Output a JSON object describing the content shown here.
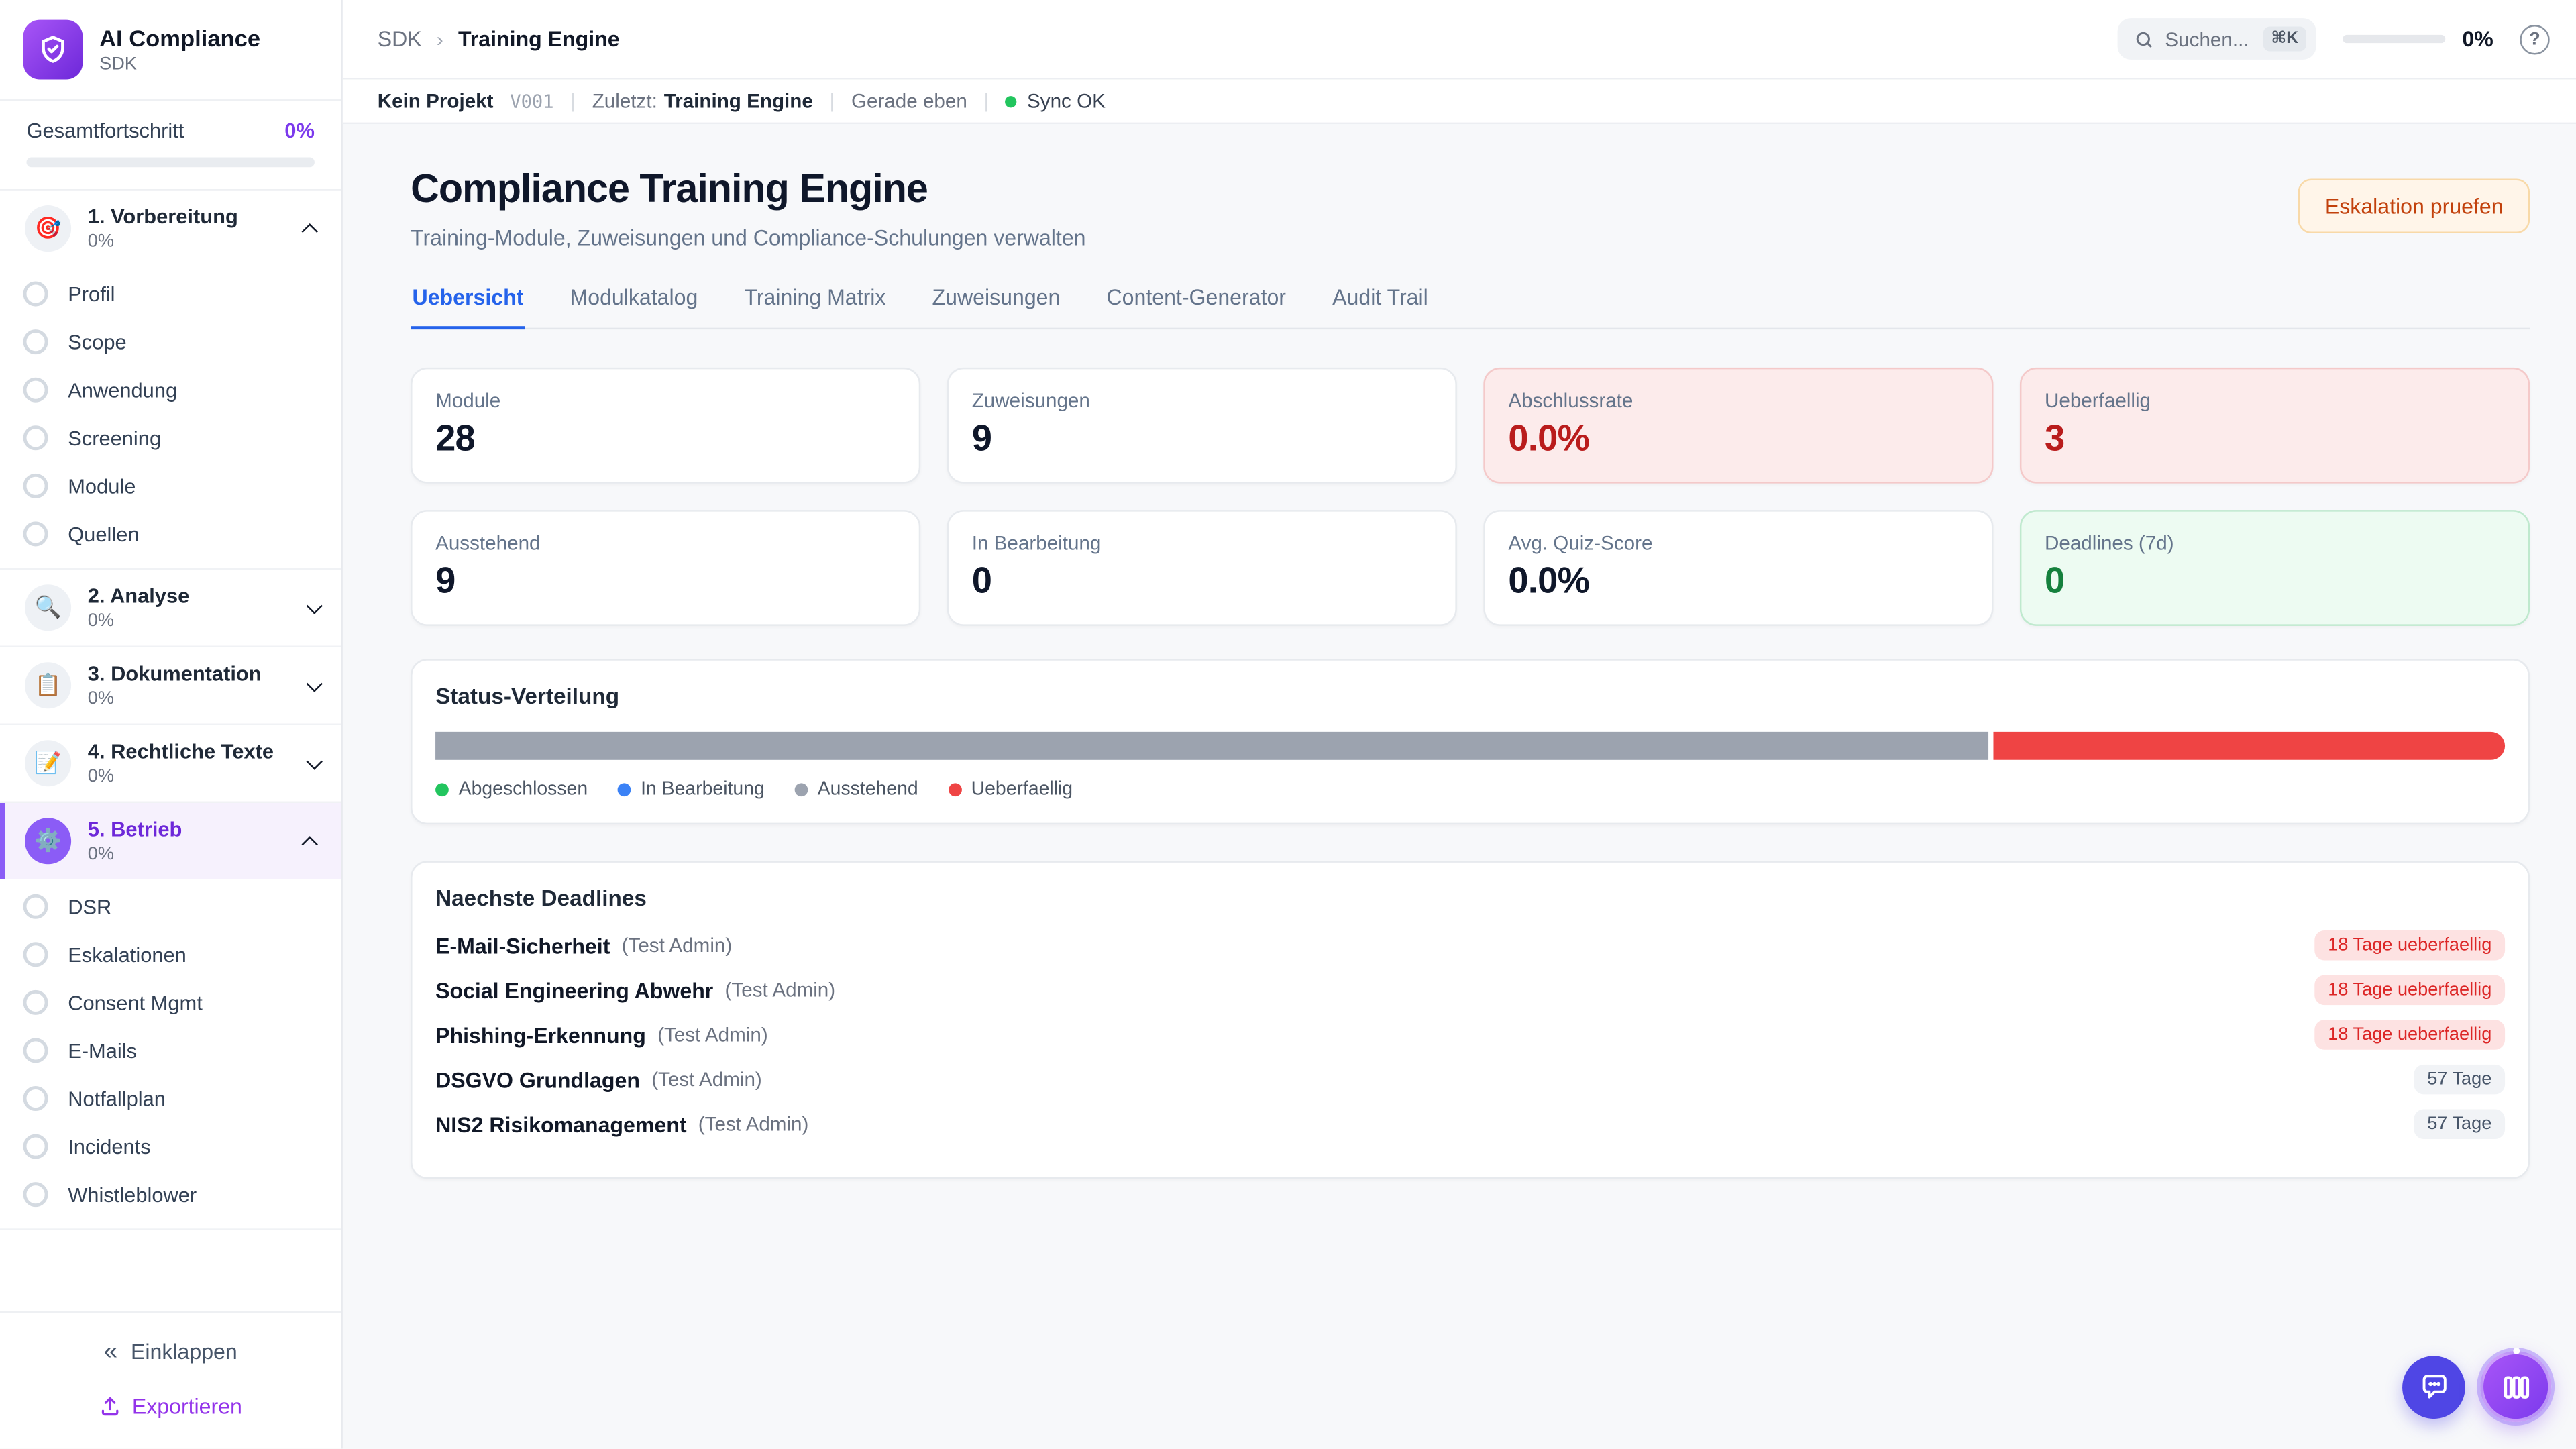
{
  "app": {
    "name": "AI Compliance",
    "subtitle": "SDK"
  },
  "sidebar": {
    "progress_label": "Gesamtfortschritt",
    "progress_value": "0%",
    "sections": [
      {
        "emoji": "🎯",
        "label": "1. Vorbereitung",
        "pct": "0%",
        "chev": "up",
        "items": [
          {
            "label": "Profil"
          },
          {
            "label": "Scope"
          },
          {
            "label": "Anwendung"
          },
          {
            "label": "Screening"
          },
          {
            "label": "Module"
          },
          {
            "label": "Quellen"
          }
        ]
      },
      {
        "emoji": "🔍",
        "label": "2. Analyse",
        "pct": "0%",
        "chev": "down"
      },
      {
        "emoji": "📋",
        "label": "3. Dokumentation",
        "pct": "0%",
        "chev": "down"
      },
      {
        "emoji": "📝",
        "label": "4. Rechtliche Texte",
        "pct": "0%",
        "chev": "down"
      },
      {
        "emoji": "⚙️",
        "label": "5. Betrieb",
        "pct": "0%",
        "chev": "up",
        "state": "active",
        "items": [
          {
            "label": "DSR"
          },
          {
            "label": "Eskalationen"
          },
          {
            "label": "Consent Mgmt"
          },
          {
            "label": "E-Mails"
          },
          {
            "label": "Notfallplan"
          },
          {
            "label": "Incidents"
          },
          {
            "label": "Whistleblower"
          }
        ]
      }
    ],
    "collapse_label": "Einklappen",
    "export_label": "Exportieren"
  },
  "topbar": {
    "crumb_parent": "SDK",
    "crumb_current": "Training Engine",
    "search_placeholder": "Suchen...",
    "search_kbd": "⌘K",
    "progress_value": "0%"
  },
  "statusbar": {
    "project": "Kein Projekt",
    "version": "V001",
    "last_label": "Zuletzt:",
    "last_value": "Training Engine",
    "updated": "Gerade eben",
    "sync": "Sync OK"
  },
  "page": {
    "title": "Compliance Training Engine",
    "subtitle": "Training-Module, Zuweisungen und Compliance-Schulungen verwalten",
    "action_label": "Eskalation pruefen"
  },
  "tabs": [
    {
      "label": "Uebersicht",
      "state": "active"
    },
    {
      "label": "Modulkatalog"
    },
    {
      "label": "Training Matrix"
    },
    {
      "label": "Zuweisungen"
    },
    {
      "label": "Content-Generator"
    },
    {
      "label": "Audit Trail"
    }
  ],
  "stats": [
    {
      "label": "Module",
      "value": "28",
      "tone": "default"
    },
    {
      "label": "Zuweisungen",
      "value": "9",
      "tone": "default"
    },
    {
      "label": "Abschlussrate",
      "value": "0.0%",
      "tone": "danger"
    },
    {
      "label": "Ueberfaellig",
      "value": "3",
      "tone": "danger"
    },
    {
      "label": "Ausstehend",
      "value": "9",
      "tone": "default"
    },
    {
      "label": "In Bearbeitung",
      "value": "0",
      "tone": "default"
    },
    {
      "label": "Avg. Quiz-Score",
      "value": "0.0%",
      "tone": "default"
    },
    {
      "label": "Deadlines (7d)",
      "value": "0",
      "tone": "success"
    }
  ],
  "chart_data": {
    "type": "bar",
    "title": "Status-Verteilung",
    "segments": [
      {
        "label": "Ausstehend",
        "value": 9,
        "pct": 75,
        "color": "#9CA3AF"
      },
      {
        "label": "Ueberfaellig",
        "value": 3,
        "pct": 25,
        "color": "#EF4444"
      }
    ],
    "legend": [
      {
        "label": "Abgeschlossen",
        "color": "#22C55E"
      },
      {
        "label": "In Bearbeitung",
        "color": "#3B82F6"
      },
      {
        "label": "Ausstehend",
        "color": "#9CA3AF"
      },
      {
        "label": "Ueberfaellig",
        "color": "#EF4444"
      }
    ]
  },
  "deadlines": {
    "title": "Naechste Deadlines",
    "rows": [
      {
        "name": "E-Mail-Sicherheit",
        "assignee": "(Test Admin)",
        "badge": "18 Tage ueberfaellig",
        "badge_style": "danger"
      },
      {
        "name": "Social Engineering Abwehr",
        "assignee": "(Test Admin)",
        "badge": "18 Tage ueberfaellig",
        "badge_style": "danger"
      },
      {
        "name": "Phishing-Erkennung",
        "assignee": "(Test Admin)",
        "badge": "18 Tage ueberfaellig",
        "badge_style": "danger"
      },
      {
        "name": "DSGVO Grundlagen",
        "assignee": "(Test Admin)",
        "badge": "57 Tage",
        "badge_style": "muted"
      },
      {
        "name": "NIS2 Risikomanagement",
        "assignee": "(Test Admin)",
        "badge": "57 Tage",
        "badge_style": "muted"
      }
    ]
  }
}
